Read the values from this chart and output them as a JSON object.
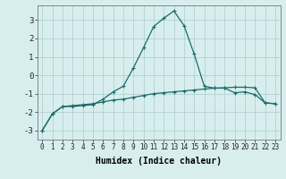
{
  "xlabel": "Humidex (Indice chaleur)",
  "x": [
    0,
    1,
    2,
    3,
    4,
    5,
    6,
    7,
    8,
    9,
    10,
    11,
    12,
    13,
    14,
    15,
    16,
    17,
    18,
    19,
    20,
    21,
    22,
    23
  ],
  "curve1": [
    -3.0,
    -2.1,
    -1.7,
    -1.65,
    -1.6,
    -1.55,
    -1.45,
    -1.35,
    -1.3,
    -1.2,
    -1.1,
    -1.0,
    -0.95,
    -0.9,
    -0.85,
    -0.8,
    -0.75,
    -0.7,
    -0.68,
    -0.65,
    -0.65,
    -0.68,
    -1.5,
    -1.55
  ],
  "curve2": [
    -3.0,
    -2.1,
    -1.7,
    -1.7,
    -1.65,
    -1.6,
    -1.3,
    -0.9,
    -0.6,
    0.4,
    1.5,
    2.65,
    3.1,
    3.5,
    2.7,
    1.15,
    -0.6,
    -0.7,
    -0.7,
    -0.95,
    -0.9,
    -1.05,
    -1.5,
    -1.55
  ],
  "bg_color": "#d8eeee",
  "grid_color": "#aacccc",
  "line_color": "#1a6b6b",
  "ylim": [
    -3.5,
    3.8
  ],
  "yticks": [
    -3,
    -2,
    -1,
    0,
    1,
    2,
    3
  ],
  "xlim": [
    -0.5,
    23.5
  ],
  "tick_fontsize": 5.5,
  "label_fontsize": 6.5,
  "xlabel_fontsize": 7.0
}
